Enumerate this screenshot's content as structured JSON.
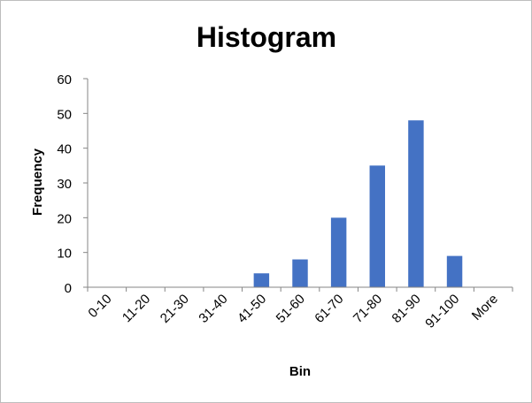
{
  "chart_data": {
    "type": "bar",
    "title": "Histogram",
    "xlabel": "Bin",
    "ylabel": "Frequency",
    "categories": [
      "0-10",
      "11-20",
      "21-30",
      "31-40",
      "41-50",
      "51-60",
      "61-70",
      "71-80",
      "81-90",
      "91-100",
      "More"
    ],
    "values": [
      0,
      0,
      0,
      0,
      4,
      8,
      20,
      35,
      48,
      9,
      0
    ],
    "ylim": [
      0,
      60
    ],
    "yticks": [
      0,
      10,
      20,
      30,
      40,
      50,
      60
    ],
    "grid": false,
    "legend": "none",
    "bar_color": "#4472C4",
    "axis_color": "#868686"
  }
}
